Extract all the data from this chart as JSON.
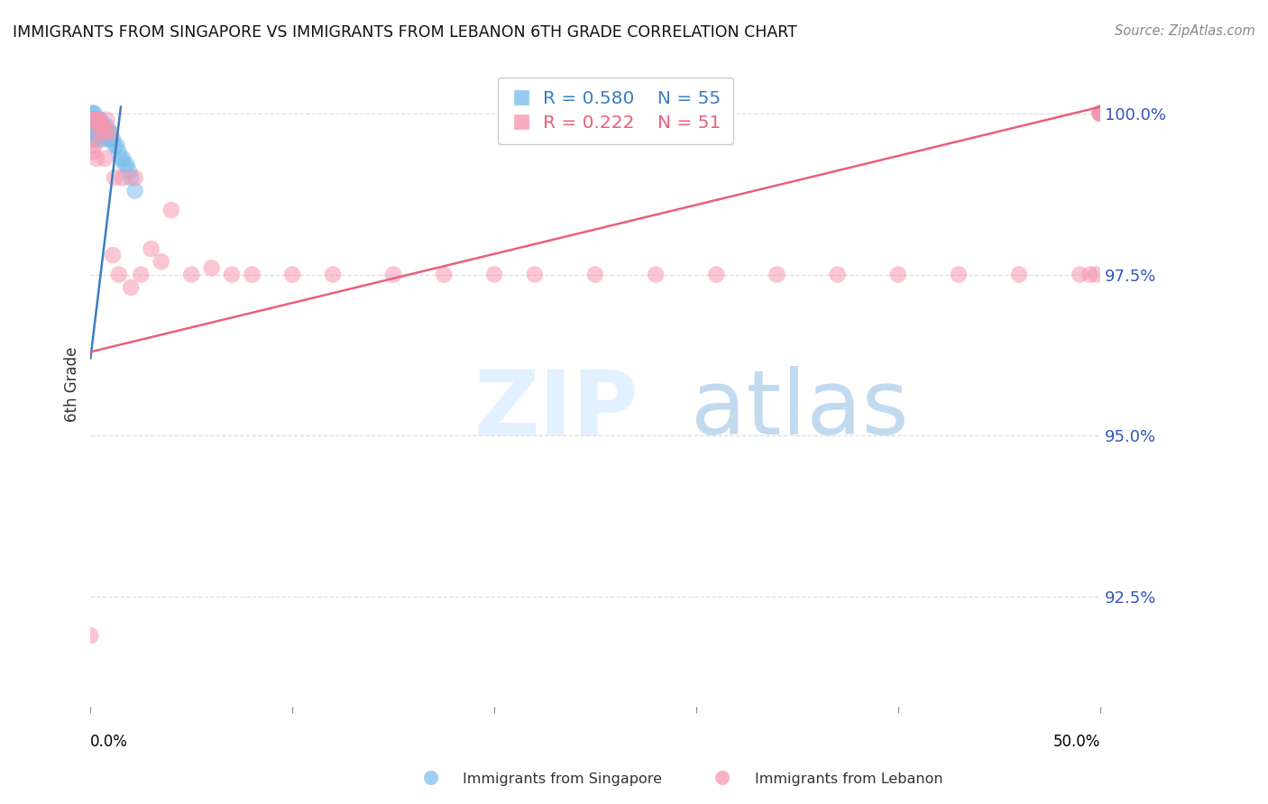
{
  "title": "IMMIGRANTS FROM SINGAPORE VS IMMIGRANTS FROM LEBANON 6TH GRADE CORRELATION CHART",
  "source": "Source: ZipAtlas.com",
  "ylabel": "6th Grade",
  "ytick_values": [
    1.0,
    0.975,
    0.95,
    0.925
  ],
  "xmin": 0.0,
  "xmax": 0.5,
  "ymin": 0.908,
  "ymax": 1.008,
  "singapore_color": "#7fbfed",
  "lebanon_color": "#f897b0",
  "singapore_line_color": "#3a7fc1",
  "lebanon_line_color": "#e8607a",
  "sg_line_x": [
    0.0,
    0.015
  ],
  "sg_line_y": [
    0.962,
    1.001
  ],
  "lb_line_x": [
    0.0,
    0.5
  ],
  "lb_line_y": [
    0.963,
    1.001
  ],
  "singapore_x": [
    0.0,
    0.0,
    0.0,
    0.0,
    0.001,
    0.001,
    0.001,
    0.001,
    0.001,
    0.001,
    0.001,
    0.001,
    0.002,
    0.002,
    0.002,
    0.002,
    0.002,
    0.002,
    0.003,
    0.003,
    0.003,
    0.003,
    0.003,
    0.003,
    0.004,
    0.004,
    0.004,
    0.004,
    0.004,
    0.005,
    0.005,
    0.005,
    0.005,
    0.006,
    0.006,
    0.006,
    0.007,
    0.007,
    0.008,
    0.008,
    0.009,
    0.009,
    0.01,
    0.01,
    0.011,
    0.012,
    0.013,
    0.014,
    0.015,
    0.016,
    0.017,
    0.018,
    0.019,
    0.02,
    0.022
  ],
  "singapore_y": [
    0.999,
    0.999,
    0.998,
    0.997,
    1.0,
    1.0,
    0.999,
    0.999,
    0.999,
    0.998,
    0.998,
    0.997,
    1.0,
    0.999,
    0.999,
    0.998,
    0.997,
    0.996,
    0.999,
    0.999,
    0.998,
    0.997,
    0.997,
    0.996,
    0.999,
    0.999,
    0.998,
    0.997,
    0.996,
    0.999,
    0.998,
    0.998,
    0.997,
    0.998,
    0.997,
    0.996,
    0.998,
    0.997,
    0.998,
    0.997,
    0.997,
    0.996,
    0.997,
    0.996,
    0.996,
    0.995,
    0.995,
    0.994,
    0.993,
    0.993,
    0.992,
    0.992,
    0.991,
    0.99,
    0.988
  ],
  "lebanon_x": [
    0.0,
    0.001,
    0.001,
    0.002,
    0.002,
    0.003,
    0.003,
    0.004,
    0.004,
    0.005,
    0.006,
    0.007,
    0.007,
    0.008,
    0.01,
    0.011,
    0.012,
    0.014,
    0.016,
    0.02,
    0.022,
    0.025,
    0.03,
    0.035,
    0.04,
    0.05,
    0.06,
    0.07,
    0.08,
    0.1,
    0.12,
    0.15,
    0.175,
    0.2,
    0.22,
    0.25,
    0.28,
    0.31,
    0.34,
    0.37,
    0.4,
    0.43,
    0.46,
    0.49,
    0.495,
    0.498,
    0.5,
    0.5,
    0.5,
    0.5,
    0.5
  ],
  "lebanon_y": [
    0.919,
    0.999,
    0.994,
    0.999,
    0.995,
    0.999,
    0.993,
    0.999,
    0.998,
    0.997,
    0.998,
    0.997,
    0.993,
    0.999,
    0.997,
    0.978,
    0.99,
    0.975,
    0.99,
    0.973,
    0.99,
    0.975,
    0.979,
    0.977,
    0.985,
    0.975,
    0.976,
    0.975,
    0.975,
    0.975,
    0.975,
    0.975,
    0.975,
    0.975,
    0.975,
    0.975,
    0.975,
    0.975,
    0.975,
    0.975,
    0.975,
    0.975,
    0.975,
    0.975,
    0.975,
    0.975,
    1.0,
    1.0,
    1.0,
    1.0,
    1.0
  ]
}
